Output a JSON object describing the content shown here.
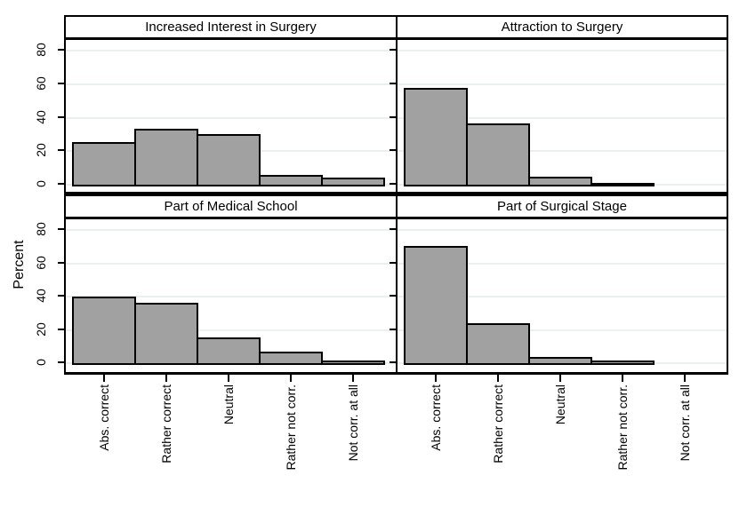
{
  "figure": {
    "ylabel": "Percent",
    "y_ticks": [
      0,
      20,
      40,
      60,
      80
    ],
    "x_categories": [
      "Abs. correct",
      "Rather correct",
      "Neutral",
      "Rather not corr.",
      "Not corr. at all"
    ],
    "colors": {
      "background": "#ffffff",
      "bar_fill": "#a1a1a1",
      "bar_border": "#000000",
      "gridline": "#e9f1ee",
      "axis": "#000000",
      "text": "#000000"
    }
  },
  "chart_data": [
    {
      "type": "bar",
      "title": "Increased Interest in Surgery",
      "categories": [
        "Abs. correct",
        "Rather correct",
        "Neutral",
        "Rather not corr.",
        "Not corr. at all"
      ],
      "values": [
        25.5,
        33.5,
        30.5,
        6,
        4.5
      ],
      "xlabel": "",
      "ylabel": "Percent",
      "ylim": [
        0,
        87
      ],
      "grid": true,
      "legend": false
    },
    {
      "type": "bar",
      "title": "Attraction to Surgery",
      "categories": [
        "Abs. correct",
        "Rather correct",
        "Neutral",
        "Rather not corr.",
        "Not corr. at all"
      ],
      "values": [
        58,
        36.5,
        5,
        0.5,
        0
      ],
      "xlabel": "",
      "ylabel": "Percent",
      "ylim": [
        0,
        87
      ],
      "grid": true,
      "legend": false
    },
    {
      "type": "bar",
      "title": "Part of Medical School",
      "categories": [
        "Abs. correct",
        "Rather correct",
        "Neutral",
        "Rather not corr.",
        "Not corr. at all"
      ],
      "values": [
        40,
        36,
        15.5,
        7,
        1.5
      ],
      "xlabel": "",
      "ylabel": "Percent",
      "ylim": [
        0,
        87
      ],
      "grid": true,
      "legend": false
    },
    {
      "type": "bar",
      "title": "Part of Surgical Stage",
      "categories": [
        "Abs. correct",
        "Rather correct",
        "Neutral",
        "Rather not corr.",
        "Not corr. at all"
      ],
      "values": [
        70.5,
        24,
        3.5,
        1.5,
        0
      ],
      "xlabel": "",
      "ylabel": "Percent",
      "ylim": [
        0,
        87
      ],
      "grid": true,
      "legend": false
    }
  ]
}
